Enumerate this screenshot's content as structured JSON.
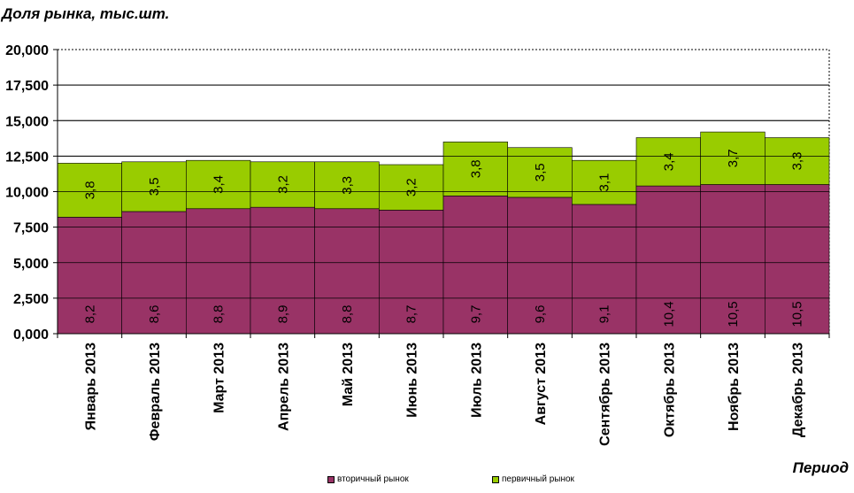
{
  "chart_data": {
    "type": "bar",
    "stacked": true,
    "categories": [
      "Январь 2013",
      "Февраль 2013",
      "Март 2013",
      "Апрель 2013",
      "Май 2013",
      "Июнь 2013",
      "Июль 2013",
      "Август 2013",
      "Сентябрь 2013",
      "Октябрь 2013",
      "Ноябрь 2013",
      "Декабрь 2013"
    ],
    "series": [
      {
        "name": "вторичный рынок",
        "values": [
          8.2,
          8.6,
          8.8,
          8.9,
          8.8,
          8.7,
          9.7,
          9.6,
          9.1,
          10.4,
          10.5,
          10.5
        ],
        "labels": [
          "8,2",
          "8,6",
          "8,8",
          "8,9",
          "8,8",
          "8,7",
          "9,7",
          "9,6",
          "9,1",
          "10,4",
          "10,5",
          "10,5"
        ],
        "color": "#993366"
      },
      {
        "name": "первичный рынок",
        "values": [
          3.8,
          3.5,
          3.4,
          3.2,
          3.3,
          3.2,
          3.8,
          3.5,
          3.1,
          3.4,
          3.7,
          3.3
        ],
        "labels": [
          "3,8",
          "3,5",
          "3,4",
          "3,2",
          "3,3",
          "3,2",
          "3,8",
          "3,5",
          "3,1",
          "3,4",
          "3,7",
          "3,3"
        ],
        "color": "#99CC00"
      }
    ],
    "ylabel": "Доля рынка, тыс.шт.",
    "xlabel": "Период",
    "ylim": [
      0,
      20
    ],
    "yticks": [
      0,
      2.5,
      5,
      7.5,
      10,
      12.5,
      15,
      17.5,
      20
    ],
    "ytick_labels": [
      "0,000",
      "2,500",
      "5,000",
      "7,500",
      "10,000",
      "12,500",
      "15,000",
      "17,500",
      "20,000"
    ],
    "grid": true,
    "legend_position": "bottom"
  }
}
